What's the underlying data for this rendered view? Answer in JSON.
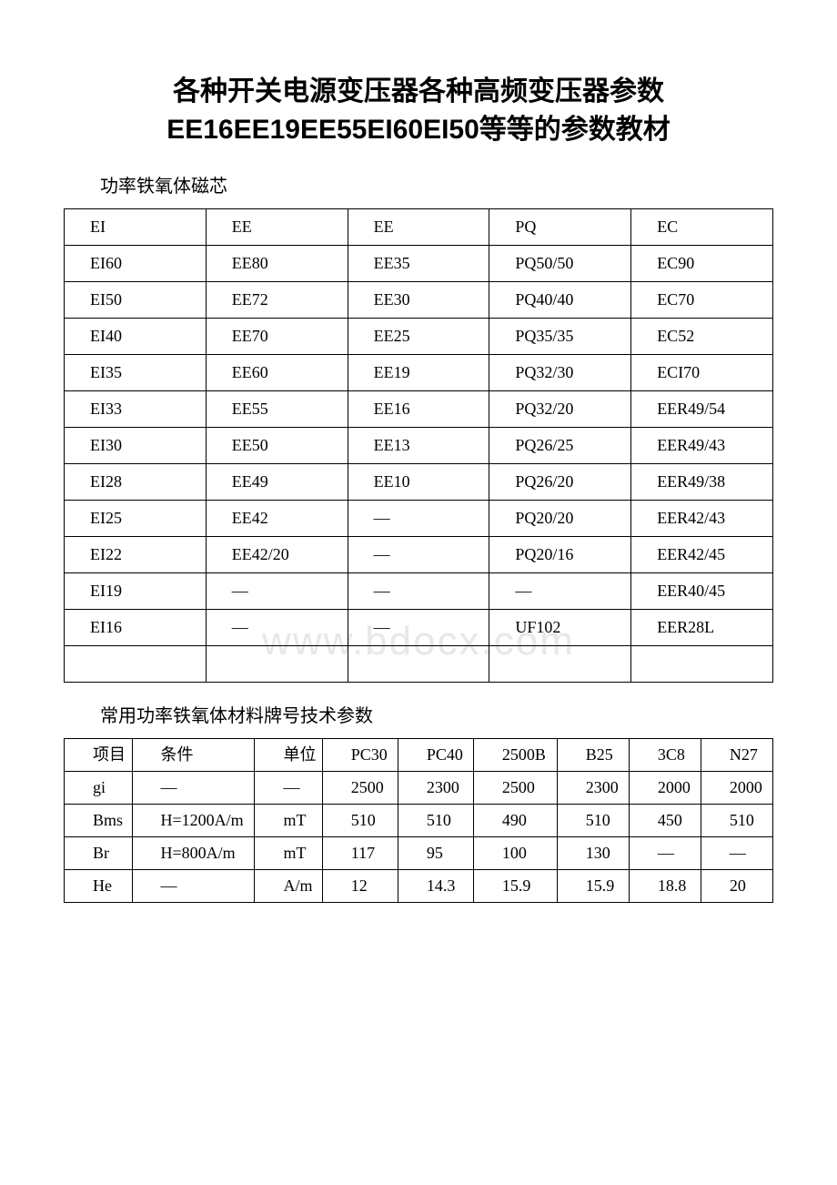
{
  "title_line1": "各种开关电源变压器各种高频变压器参数",
  "title_line2": "EE16EE19EE55EI60EI50等等的参数教材",
  "subtitle1": "功率铁氧体磁芯",
  "subtitle2": "常用功率铁氧体材料牌号技术参数",
  "watermark": "www.bdocx.com",
  "table1": {
    "rows": [
      [
        "EI",
        "EE",
        "EE",
        "PQ",
        "EC"
      ],
      [
        "EI60",
        "EE80",
        "EE35",
        "PQ50/50",
        "EC90"
      ],
      [
        "EI50",
        "EE72",
        "EE30",
        "PQ40/40",
        "EC70"
      ],
      [
        "EI40",
        "EE70",
        "EE25",
        "PQ35/35",
        "EC52"
      ],
      [
        "EI35",
        "EE60",
        "EE19",
        "PQ32/30",
        "ECI70"
      ],
      [
        "EI33",
        "EE55",
        "EE16",
        "PQ32/20",
        "EER49/54"
      ],
      [
        "EI30",
        "EE50",
        "EE13",
        "PQ26/25",
        "EER49/43"
      ],
      [
        "EI28",
        "EE49",
        "EE10",
        "PQ26/20",
        "EER49/38"
      ],
      [
        "EI25",
        "EE42",
        "—",
        "PQ20/20",
        "EER42/43"
      ],
      [
        "EI22",
        "EE42/20",
        "—",
        "PQ20/16",
        "EER42/45"
      ],
      [
        "EI19",
        "—",
        "—",
        "—",
        "EER40/45"
      ],
      [
        "EI16",
        "—",
        "—",
        "UF102",
        "EER28L"
      ],
      [
        "",
        "",
        "",
        "",
        ""
      ]
    ]
  },
  "table2": {
    "col_widths": [
      "7%",
      "10%",
      "8%",
      "9%",
      "9%",
      "10%",
      "9%",
      "9%",
      "9%"
    ],
    "rows": [
      [
        "项目",
        "条件",
        "单位",
        "PC30",
        "PC40",
        "2500B",
        "B25",
        "3C8",
        "N27"
      ],
      [
        "gi",
        "—",
        "—",
        "2500",
        "2300",
        "2500",
        "2300",
        "2000",
        "2000"
      ],
      [
        "Bms",
        "H=1200A/m",
        "mT",
        "510",
        "510",
        "490",
        "510",
        "450",
        "510"
      ],
      [
        "Br",
        "H=800A/m",
        "mT",
        "117",
        "95",
        "100",
        "130",
        "—",
        "—"
      ],
      [
        "He",
        "—",
        "A/m",
        "12",
        "14.3",
        "15.9",
        "15.9",
        "18.8",
        "20"
      ]
    ]
  }
}
